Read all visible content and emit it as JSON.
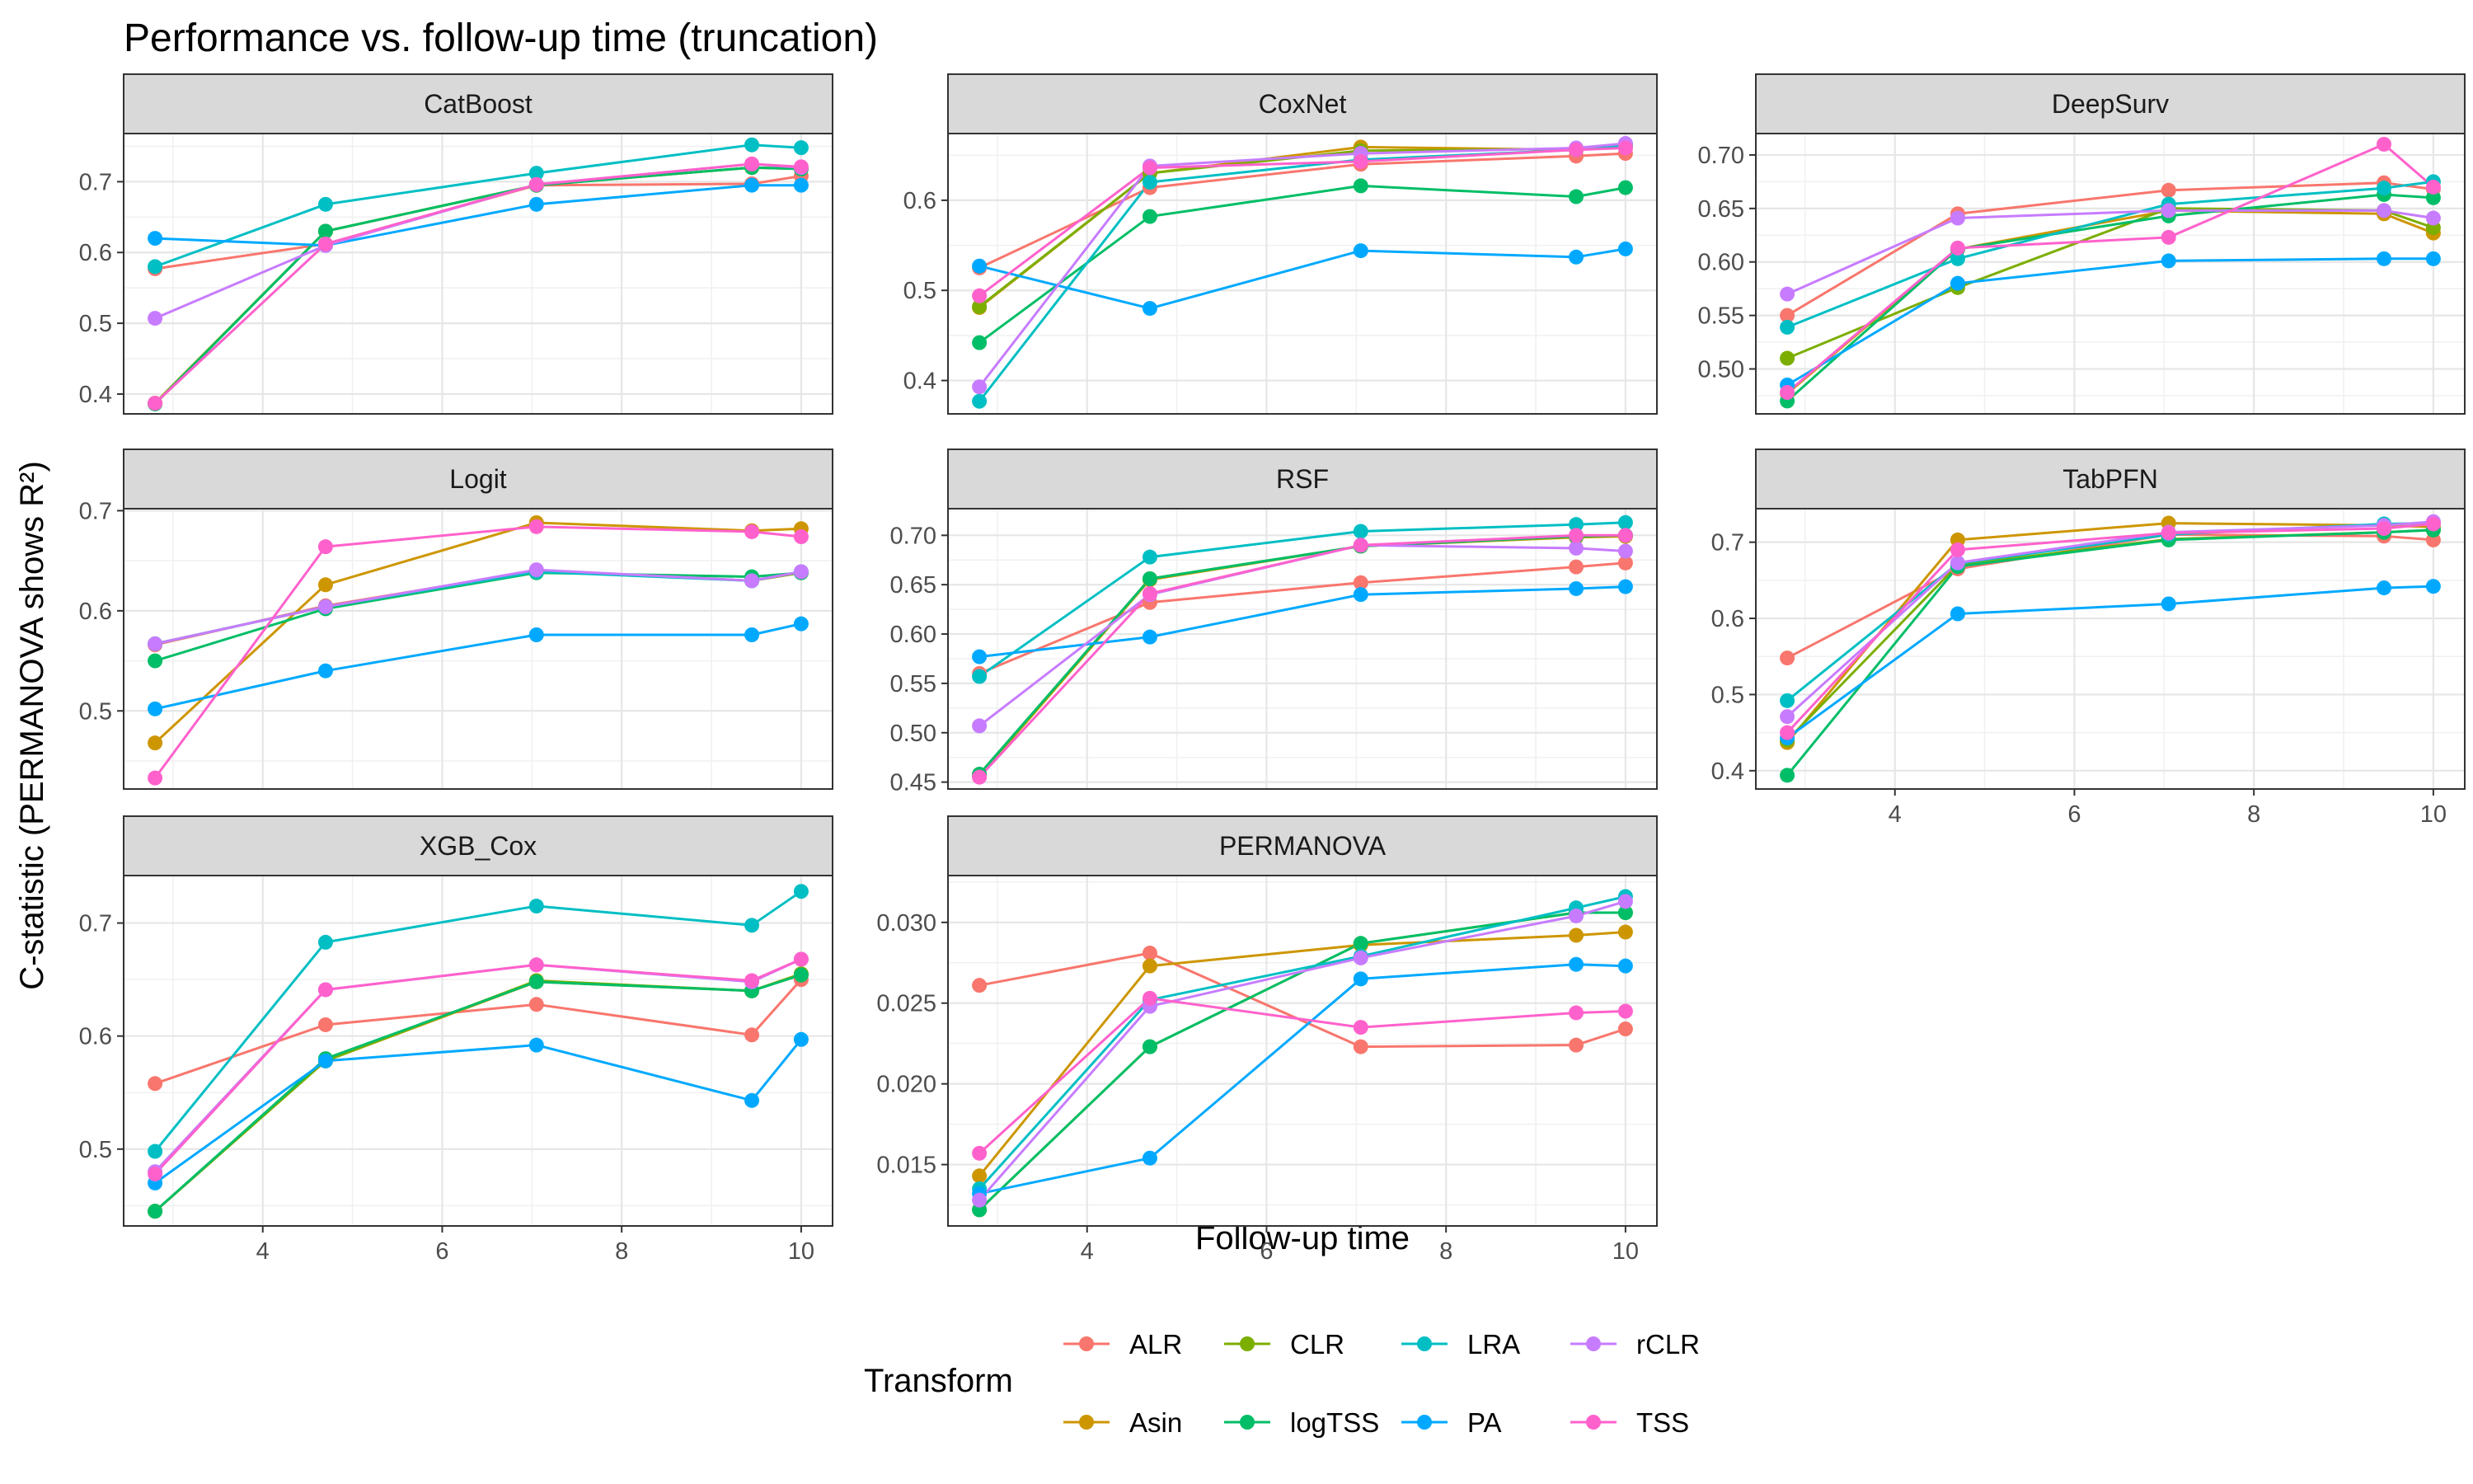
{
  "title": "Performance vs. follow-up time (truncation)",
  "xlabel": "Follow-up time",
  "ylabel": "C-statistic (PERMANOVA shows R²)",
  "legend": {
    "title": "Transform",
    "placement": "bottom",
    "items": [
      "ALR",
      "Asin",
      "CLR",
      "logTSS",
      "LRA",
      "PA",
      "rCLR",
      "TSS"
    ]
  },
  "colors": {
    "ALR": "#F8766D",
    "Asin": "#CD9600",
    "CLR": "#7CAE00",
    "logTSS": "#00BE67",
    "LRA": "#00BFC4",
    "PA": "#00A9FF",
    "rCLR": "#C77CFF",
    "TSS": "#FF61CC"
  },
  "chart_data": {
    "type": "line",
    "facet_layout": "3 columns, free y scales",
    "x": [
      2.8,
      4.7,
      7.05,
      9.45,
      10.0
    ],
    "xlim": [
      2.45,
      10.35
    ],
    "xticks": [
      4,
      6,
      8,
      10
    ],
    "grid": true,
    "panels": [
      {
        "name": "CatBoost",
        "ylim": [
          0.372,
          0.768
        ],
        "yticks": [
          0.4,
          0.5,
          0.6,
          0.7
        ],
        "tick_decimals": 1,
        "series": [
          {
            "name": "ALR",
            "values": [
              0.577,
              0.612,
              0.695,
              0.697,
              0.708
            ]
          },
          {
            "name": "Asin",
            "values": [
              0.387,
              0.63,
              0.695,
              0.72,
              0.718
            ]
          },
          {
            "name": "CLR",
            "values": [
              0.387,
              0.63,
              0.695,
              0.72,
              0.718
            ]
          },
          {
            "name": "logTSS",
            "values": [
              0.386,
              0.63,
              0.695,
              0.72,
              0.718
            ]
          },
          {
            "name": "LRA",
            "values": [
              0.58,
              0.668,
              0.712,
              0.752,
              0.748
            ]
          },
          {
            "name": "PA",
            "values": [
              0.62,
              0.61,
              0.668,
              0.695,
              0.695
            ]
          },
          {
            "name": "rCLR",
            "values": [
              0.507,
              0.61,
              0.696,
              0.725,
              0.72
            ]
          },
          {
            "name": "TSS",
            "values": [
              0.387,
              0.612,
              0.696,
              0.725,
              0.721
            ]
          }
        ]
      },
      {
        "name": "CoxNet",
        "ylim": [
          0.363,
          0.674
        ],
        "yticks": [
          0.4,
          0.5,
          0.6
        ],
        "tick_decimals": 1,
        "series": [
          {
            "name": "ALR",
            "values": [
              0.525,
              0.614,
              0.64,
              0.649,
              0.652
            ]
          },
          {
            "name": "Asin",
            "values": [
              0.481,
              0.63,
              0.659,
              0.656,
              0.662
            ]
          },
          {
            "name": "CLR",
            "values": [
              0.482,
              0.63,
              0.655,
              0.657,
              0.66
            ]
          },
          {
            "name": "logTSS",
            "values": [
              0.442,
              0.582,
              0.616,
              0.604,
              0.614
            ]
          },
          {
            "name": "LRA",
            "values": [
              0.377,
              0.62,
              0.645,
              0.656,
              0.66
            ]
          },
          {
            "name": "PA",
            "values": [
              0.527,
              0.48,
              0.544,
              0.537,
              0.546
            ]
          },
          {
            "name": "rCLR",
            "values": [
              0.393,
              0.638,
              0.652,
              0.658,
              0.663
            ]
          },
          {
            "name": "TSS",
            "values": [
              0.494,
              0.636,
              0.643,
              0.656,
              0.658
            ]
          }
        ]
      },
      {
        "name": "DeepSurv",
        "ylim": [
          0.458,
          0.72
        ],
        "yticks": [
          0.5,
          0.55,
          0.6,
          0.65,
          0.7
        ],
        "tick_decimals": 2,
        "series": [
          {
            "name": "ALR",
            "values": [
              0.55,
              0.645,
              0.667,
              0.674,
              0.668
            ]
          },
          {
            "name": "Asin",
            "values": [
              0.477,
              0.612,
              0.648,
              0.645,
              0.627
            ]
          },
          {
            "name": "CLR",
            "values": [
              0.51,
              0.576,
              0.65,
              0.648,
              0.632
            ]
          },
          {
            "name": "logTSS",
            "values": [
              0.47,
              0.612,
              0.643,
              0.663,
              0.66
            ]
          },
          {
            "name": "LRA",
            "values": [
              0.539,
              0.603,
              0.654,
              0.669,
              0.675
            ]
          },
          {
            "name": "PA",
            "values": [
              0.485,
              0.58,
              0.601,
              0.603,
              0.603
            ]
          },
          {
            "name": "rCLR",
            "values": [
              0.57,
              0.641,
              0.648,
              0.648,
              0.641
            ]
          },
          {
            "name": "TSS",
            "values": [
              0.478,
              0.613,
              0.623,
              0.71,
              0.67
            ]
          }
        ]
      },
      {
        "name": "Logit",
        "ylim": [
          0.422,
          0.702
        ],
        "yticks": [
          0.5,
          0.6,
          0.7
        ],
        "tick_decimals": 1,
        "series": [
          {
            "name": "ALR",
            "values": [
              0.566,
              0.605,
              0.64,
              0.63,
              0.638
            ]
          },
          {
            "name": "Asin",
            "values": [
              0.468,
              0.626,
              0.688,
              0.68,
              0.682
            ]
          },
          {
            "name": "CLR",
            "values": [
              0.567,
              0.604,
              0.64,
              0.63,
              0.638
            ]
          },
          {
            "name": "logTSS",
            "values": [
              0.55,
              0.602,
              0.638,
              0.634,
              0.638
            ]
          },
          {
            "name": "LRA",
            "values": [
              0.567,
              0.604,
              0.639,
              0.63,
              0.639
            ]
          },
          {
            "name": "PA",
            "values": [
              0.502,
              0.54,
              0.576,
              0.576,
              0.587
            ]
          },
          {
            "name": "rCLR",
            "values": [
              0.567,
              0.604,
              0.641,
              0.63,
              0.639
            ]
          },
          {
            "name": "TSS",
            "values": [
              0.433,
              0.664,
              0.684,
              0.679,
              0.674
            ]
          }
        ]
      },
      {
        "name": "RSF",
        "ylim": [
          0.443,
          0.727
        ],
        "yticks": [
          0.45,
          0.5,
          0.55,
          0.6,
          0.65,
          0.7
        ],
        "tick_decimals": 2,
        "series": [
          {
            "name": "ALR",
            "values": [
              0.56,
              0.632,
              0.652,
              0.668,
              0.672
            ]
          },
          {
            "name": "Asin",
            "values": [
              0.456,
              0.655,
              0.689,
              0.698,
              0.699
            ]
          },
          {
            "name": "CLR",
            "values": [
              0.457,
              0.656,
              0.689,
              0.699,
              0.7
            ]
          },
          {
            "name": "logTSS",
            "values": [
              0.458,
              0.656,
              0.689,
              0.699,
              0.7
            ]
          },
          {
            "name": "LRA",
            "values": [
              0.557,
              0.678,
              0.704,
              0.711,
              0.713
            ]
          },
          {
            "name": "PA",
            "values": [
              0.577,
              0.597,
              0.64,
              0.646,
              0.648
            ]
          },
          {
            "name": "rCLR",
            "values": [
              0.507,
              0.64,
              0.69,
              0.687,
              0.684
            ]
          },
          {
            "name": "TSS",
            "values": [
              0.455,
              0.641,
              0.69,
              0.7,
              0.7
            ]
          }
        ]
      },
      {
        "name": "TabPFN",
        "ylim": [
          0.376,
          0.744
        ],
        "yticks": [
          0.4,
          0.5,
          0.6,
          0.7
        ],
        "tick_decimals": 1,
        "series": [
          {
            "name": "ALR",
            "values": [
              0.548,
              0.665,
              0.71,
              0.708,
              0.703
            ]
          },
          {
            "name": "Asin",
            "values": [
              0.437,
              0.703,
              0.725,
              0.722,
              0.72
            ]
          },
          {
            "name": "CLR",
            "values": [
              0.44,
              0.67,
              0.704,
              0.713,
              0.716
            ]
          },
          {
            "name": "logTSS",
            "values": [
              0.394,
              0.668,
              0.703,
              0.713,
              0.716
            ]
          },
          {
            "name": "LRA",
            "values": [
              0.492,
              0.672,
              0.71,
              0.724,
              0.725
            ]
          },
          {
            "name": "PA",
            "values": [
              0.443,
              0.606,
              0.619,
              0.64,
              0.642
            ]
          },
          {
            "name": "rCLR",
            "values": [
              0.471,
              0.673,
              0.713,
              0.722,
              0.727
            ]
          },
          {
            "name": "TSS",
            "values": [
              0.45,
              0.69,
              0.712,
              0.718,
              0.724
            ]
          }
        ]
      },
      {
        "name": "XGB_Cox",
        "ylim": [
          0.432,
          0.742
        ],
        "yticks": [
          0.5,
          0.6,
          0.7
        ],
        "tick_decimals": 1,
        "series": [
          {
            "name": "ALR",
            "values": [
              0.558,
              0.61,
              0.628,
              0.601,
              0.65
            ]
          },
          {
            "name": "Asin",
            "values": [
              0.445,
              0.578,
              0.648,
              0.64,
              0.655
            ]
          },
          {
            "name": "CLR",
            "values": [
              0.445,
              0.578,
              0.649,
              0.64,
              0.655
            ]
          },
          {
            "name": "logTSS",
            "values": [
              0.445,
              0.58,
              0.648,
              0.64,
              0.654
            ]
          },
          {
            "name": "LRA",
            "values": [
              0.498,
              0.683,
              0.715,
              0.698,
              0.728
            ]
          },
          {
            "name": "PA",
            "values": [
              0.47,
              0.578,
              0.592,
              0.543,
              0.597
            ]
          },
          {
            "name": "rCLR",
            "values": [
              0.48,
              0.641,
              0.663,
              0.648,
              0.668
            ]
          },
          {
            "name": "TSS",
            "values": [
              0.478,
              0.641,
              0.663,
              0.649,
              0.668
            ]
          }
        ]
      },
      {
        "name": "PERMANOVA",
        "ylim": [
          0.0112,
          0.0329
        ],
        "yticks": [
          0.015,
          0.02,
          0.025,
          0.03
        ],
        "tick_decimals": 3,
        "series": [
          {
            "name": "ALR",
            "values": [
              0.0261,
              0.0281,
              0.0223,
              0.0224,
              0.0234
            ]
          },
          {
            "name": "Asin",
            "values": [
              0.0143,
              0.0273,
              0.0286,
              0.0292,
              0.0294
            ]
          },
          {
            "name": "CLR",
            "values": [
              0.0122,
              0.0223,
              0.0287,
              0.0306,
              0.0306
            ]
          },
          {
            "name": "logTSS",
            "values": [
              0.0122,
              0.0223,
              0.0287,
              0.0306,
              0.0306
            ]
          },
          {
            "name": "LRA",
            "values": [
              0.0135,
              0.0252,
              0.0279,
              0.0309,
              0.0316
            ]
          },
          {
            "name": "PA",
            "values": [
              0.0132,
              0.0154,
              0.0265,
              0.0274,
              0.0273
            ]
          },
          {
            "name": "rCLR",
            "values": [
              0.0128,
              0.0248,
              0.0278,
              0.0304,
              0.0313
            ]
          },
          {
            "name": "TSS",
            "values": [
              0.0157,
              0.0253,
              0.0235,
              0.0244,
              0.0245
            ]
          }
        ]
      }
    ]
  }
}
